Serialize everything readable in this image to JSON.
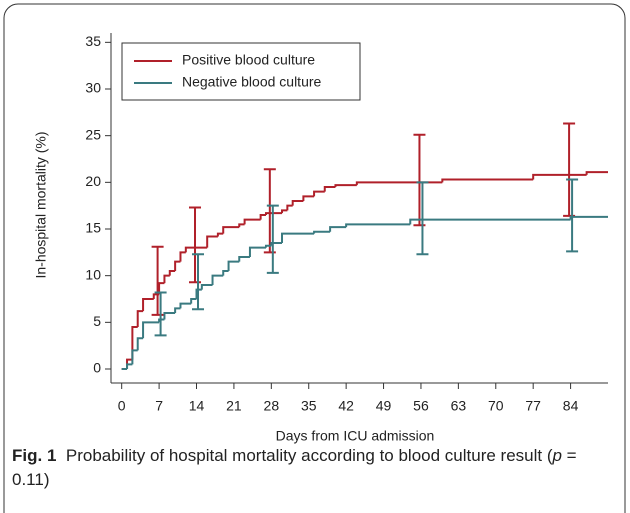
{
  "chart_data": {
    "type": "step",
    "xlabel": "Days from ICU admission",
    "ylabel": "In-hospital mortality (%)",
    "xlim": [
      -2,
      91
    ],
    "ylim": [
      -1.5,
      36
    ],
    "xticks": [
      0,
      7,
      14,
      21,
      28,
      35,
      42,
      49,
      56,
      63,
      70,
      77,
      84
    ],
    "yticks": [
      0,
      5,
      10,
      15,
      20,
      25,
      30,
      35
    ],
    "legend": "top-left",
    "series": [
      {
        "name": "Positive blood culture",
        "color": "#b0202a",
        "x": [
          0,
          1,
          2,
          3,
          4,
          6,
          7,
          8,
          9,
          10,
          11,
          12,
          16,
          18,
          19,
          22,
          23,
          26,
          27,
          30,
          31,
          32,
          34,
          36,
          38,
          40,
          44,
          60,
          77,
          87
        ],
        "values": [
          0,
          1,
          4.5,
          6.2,
          7.5,
          8,
          9.2,
          10,
          10.5,
          11.5,
          12.5,
          13,
          14.2,
          14.5,
          15.2,
          15.5,
          16,
          16.5,
          16.7,
          17,
          17.5,
          18,
          18.5,
          19,
          19.5,
          19.7,
          20,
          20.3,
          20.8,
          21.1
        ],
        "ci_x": [
          7,
          14,
          28,
          56,
          84
        ],
        "ci_lower": [
          5.8,
          9.3,
          12.5,
          15.4,
          16.4
        ],
        "ci_upper": [
          13.1,
          17.3,
          21.4,
          25.1,
          26.3
        ]
      },
      {
        "name": "Negative blood culture",
        "color": "#3a7a80",
        "x": [
          0,
          1,
          2,
          3,
          4,
          7,
          8,
          10,
          11,
          13,
          14,
          15,
          17,
          19,
          20,
          22,
          24,
          27,
          28,
          30,
          36,
          39,
          42,
          54,
          84
        ],
        "values": [
          0,
          0.5,
          2,
          3.3,
          5,
          5.3,
          6,
          6.5,
          7,
          7.5,
          8.5,
          9,
          10,
          10.5,
          11.5,
          12,
          13,
          13.2,
          13.5,
          14.5,
          14.7,
          15.2,
          15.5,
          16,
          16.3
        ],
        "ci_x": [
          7,
          14,
          28,
          56,
          84
        ],
        "ci_lower": [
          3.6,
          6.4,
          10.3,
          12.3,
          12.6
        ],
        "ci_upper": [
          8.2,
          12.3,
          17.5,
          20,
          20.3
        ]
      }
    ]
  },
  "caption": {
    "label": "Fig. 1",
    "text": "Probability of hospital mortality according to blood culture result (",
    "italic": "p",
    "after": " = 0.11)"
  }
}
